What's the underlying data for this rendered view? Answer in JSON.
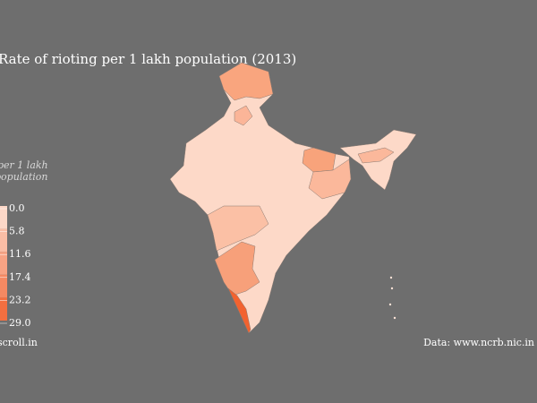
{
  "title": "Rate of rioting per 1 lakh population (2013)",
  "legend": {
    "title": [
      "per 1 lakh",
      "population"
    ],
    "lim": [
      0,
      29
    ],
    "ticks": [
      {
        "value": 0,
        "label": "0.0"
      },
      5.8,
      11.6,
      17.4,
      23.2,
      {
        "value": 29,
        "label": "29.0"
      }
    ],
    "colors": [
      "#fde4d8",
      "#f2622f"
    ]
  },
  "footer": {
    "source": "scroll.in",
    "data": "Data: www.ncrb.nic.in"
  }
}
